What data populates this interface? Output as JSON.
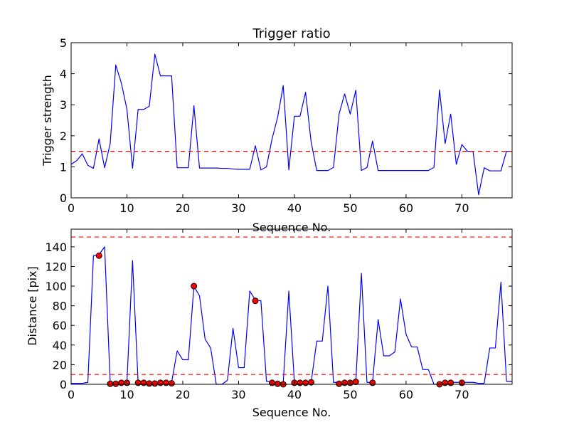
{
  "chart_data": [
    {
      "type": "line",
      "title": "Trigger ratio",
      "xlabel": "Sequence No.",
      "ylabel": "Trigger strength",
      "xlim": [
        0,
        79
      ],
      "ylim": [
        0,
        5
      ],
      "xticks": [
        0,
        10,
        20,
        30,
        40,
        50,
        60,
        70
      ],
      "yticks": [
        0,
        1,
        2,
        3,
        4,
        5
      ],
      "grid": false,
      "colors": {
        "line": "#0000ff",
        "threshold": "#ff0000"
      },
      "threshold_lines": [
        1.5
      ],
      "series": [
        {
          "x": [
            0,
            1,
            2,
            3,
            4,
            5,
            6,
            7,
            8,
            9,
            10,
            11,
            12,
            13,
            14,
            15,
            16,
            17,
            18,
            19,
            20,
            21,
            22,
            23,
            24,
            25,
            26,
            27,
            28,
            29,
            30,
            31,
            32,
            33,
            34,
            35,
            36,
            37,
            38,
            39,
            40,
            41,
            42,
            43,
            44,
            45,
            46,
            47,
            48,
            49,
            50,
            51,
            52,
            53,
            54,
            55,
            56,
            57,
            58,
            59,
            60,
            61,
            62,
            63,
            64,
            65,
            66,
            67,
            68,
            69,
            70,
            71,
            72,
            73,
            74,
            75,
            76,
            77,
            78,
            79
          ],
          "values": [
            1.08,
            1.2,
            1.42,
            1.05,
            0.95,
            1.9,
            0.97,
            1.75,
            4.28,
            3.7,
            2.85,
            0.95,
            2.85,
            2.85,
            2.95,
            4.63,
            3.93,
            3.93,
            3.93,
            0.97,
            0.97,
            0.97,
            2.97,
            0.96,
            0.96,
            0.96,
            0.96,
            0.95,
            0.95,
            0.93,
            0.92,
            0.92,
            0.92,
            1.68,
            0.9,
            1.0,
            1.9,
            2.6,
            3.62,
            0.9,
            2.63,
            2.63,
            3.4,
            1.8,
            0.88,
            0.88,
            0.88,
            0.98,
            2.7,
            3.35,
            2.7,
            3.47,
            0.88,
            0.98,
            1.83,
            0.88,
            0.88,
            0.88,
            0.88,
            0.88,
            0.88,
            0.88,
            0.88,
            0.88,
            0.88,
            0.98,
            3.48,
            1.75,
            2.7,
            1.08,
            1.72,
            1.5,
            1.5,
            0.1,
            0.97,
            0.87,
            0.87,
            0.87,
            1.5,
            1.5
          ]
        }
      ]
    },
    {
      "type": "line",
      "title": "",
      "xlabel": "Sequence No.",
      "ylabel": "Distance [pix]",
      "xlim": [
        0,
        79
      ],
      "ylim": [
        0,
        158
      ],
      "xticks": [
        0,
        10,
        20,
        30,
        40,
        50,
        60,
        70
      ],
      "yticks": [
        0,
        20,
        40,
        60,
        80,
        100,
        120,
        140
      ],
      "grid": false,
      "colors": {
        "line": "#0000ff",
        "threshold": "#ff0000",
        "marker": "#ff0000"
      },
      "threshold_lines": [
        10,
        150
      ],
      "series": [
        {
          "x": [
            0,
            1,
            2,
            3,
            4,
            5,
            6,
            7,
            8,
            9,
            10,
            11,
            12,
            13,
            14,
            15,
            16,
            17,
            18,
            19,
            20,
            21,
            22,
            23,
            24,
            25,
            26,
            27,
            28,
            29,
            30,
            31,
            32,
            33,
            34,
            35,
            36,
            37,
            38,
            39,
            40,
            41,
            42,
            43,
            44,
            45,
            46,
            47,
            48,
            49,
            50,
            51,
            52,
            53,
            54,
            55,
            56,
            57,
            58,
            59,
            60,
            61,
            62,
            63,
            64,
            65,
            66,
            67,
            68,
            69,
            70,
            71,
            72,
            73,
            74,
            75,
            76,
            77,
            78,
            79
          ],
          "values": [
            1,
            1,
            1,
            2,
            131,
            132,
            140,
            2,
            2,
            2,
            2,
            126,
            2,
            2,
            2,
            2,
            2,
            2,
            2,
            34,
            25,
            25,
            100,
            90,
            46,
            37,
            0,
            0,
            4,
            57,
            17,
            17,
            95,
            86,
            85,
            3,
            2,
            0,
            2,
            95,
            2,
            2,
            2,
            2,
            44,
            44,
            100,
            2,
            2,
            2,
            2,
            2,
            113,
            2,
            2,
            66,
            29,
            29,
            33,
            87,
            51,
            38,
            38,
            15,
            15,
            0,
            0,
            2,
            2,
            2,
            2,
            2,
            2,
            1,
            1,
            37,
            37,
            104,
            3,
            3
          ]
        },
        {
          "markers": true,
          "x": [
            5,
            7,
            8,
            9,
            10,
            12,
            13,
            14,
            15,
            16,
            17,
            18,
            22,
            33,
            36,
            37,
            38,
            40,
            41,
            42,
            43,
            48,
            49,
            50,
            51,
            54,
            66,
            67,
            68,
            70
          ],
          "values": [
            131,
            0.5,
            0.5,
            1.5,
            1.5,
            1.5,
            1.5,
            0.8,
            0.8,
            1.5,
            1.5,
            1,
            100,
            85,
            1.5,
            0.5,
            0,
            1.5,
            1.5,
            1.5,
            2,
            0.5,
            1.5,
            1.5,
            2.5,
            1.5,
            0,
            1.5,
            1.5,
            1.5
          ]
        }
      ]
    }
  ]
}
